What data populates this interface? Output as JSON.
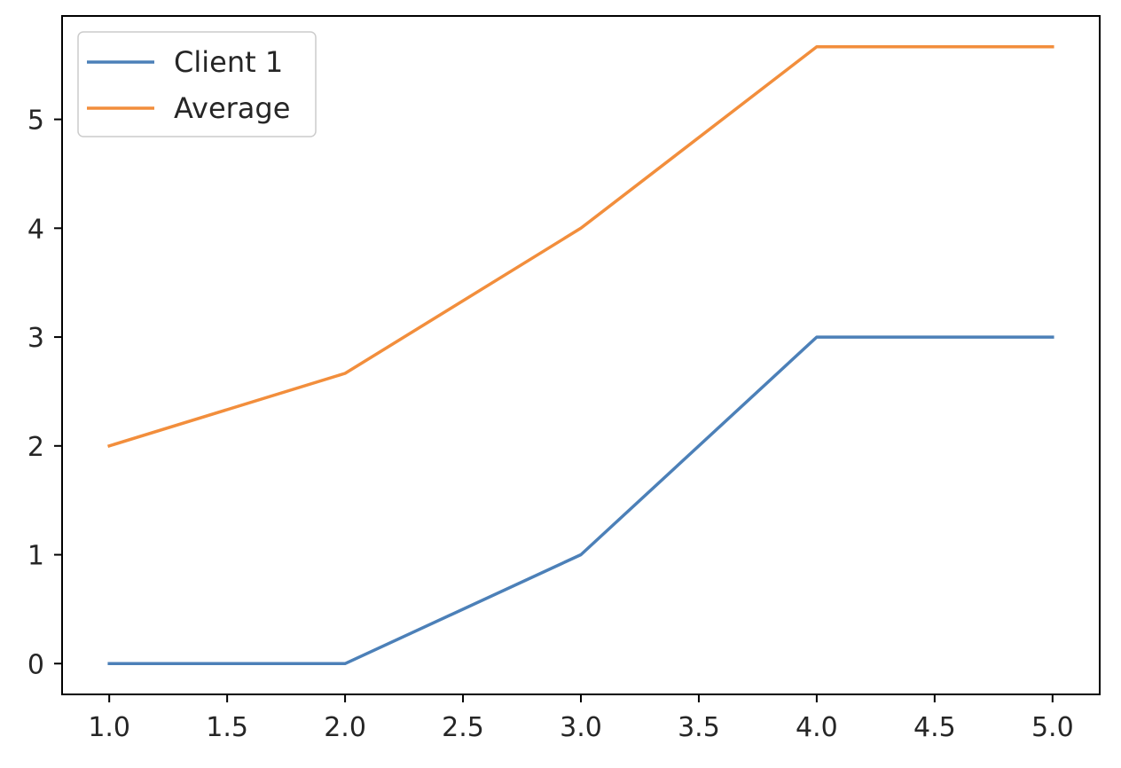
{
  "chart_data": {
    "type": "line",
    "title": "",
    "xlabel": "",
    "ylabel": "",
    "x": [
      1.0,
      2.0,
      3.0,
      4.0,
      5.0
    ],
    "series": [
      {
        "name": "Client 1",
        "values": [
          0,
          0,
          1,
          3,
          3
        ],
        "color": "#4c80b8"
      },
      {
        "name": "Average",
        "values": [
          2,
          2.6667,
          4,
          5.6667,
          5.6667
        ],
        "color": "#f28e3c"
      }
    ],
    "xlim": [
      0.8,
      5.2
    ],
    "ylim": [
      -0.283,
      5.95
    ],
    "xticks": [
      "1.0",
      "1.5",
      "2.0",
      "2.5",
      "3.0",
      "3.5",
      "4.0",
      "4.5",
      "5.0"
    ],
    "xtick_values": [
      1.0,
      1.5,
      2.0,
      2.5,
      3.0,
      3.5,
      4.0,
      4.5,
      5.0
    ],
    "yticks": [
      "0",
      "1",
      "2",
      "3",
      "4",
      "5"
    ],
    "ytick_values": [
      0,
      1,
      2,
      3,
      4,
      5
    ],
    "grid": false,
    "legend_position": "upper-left"
  }
}
